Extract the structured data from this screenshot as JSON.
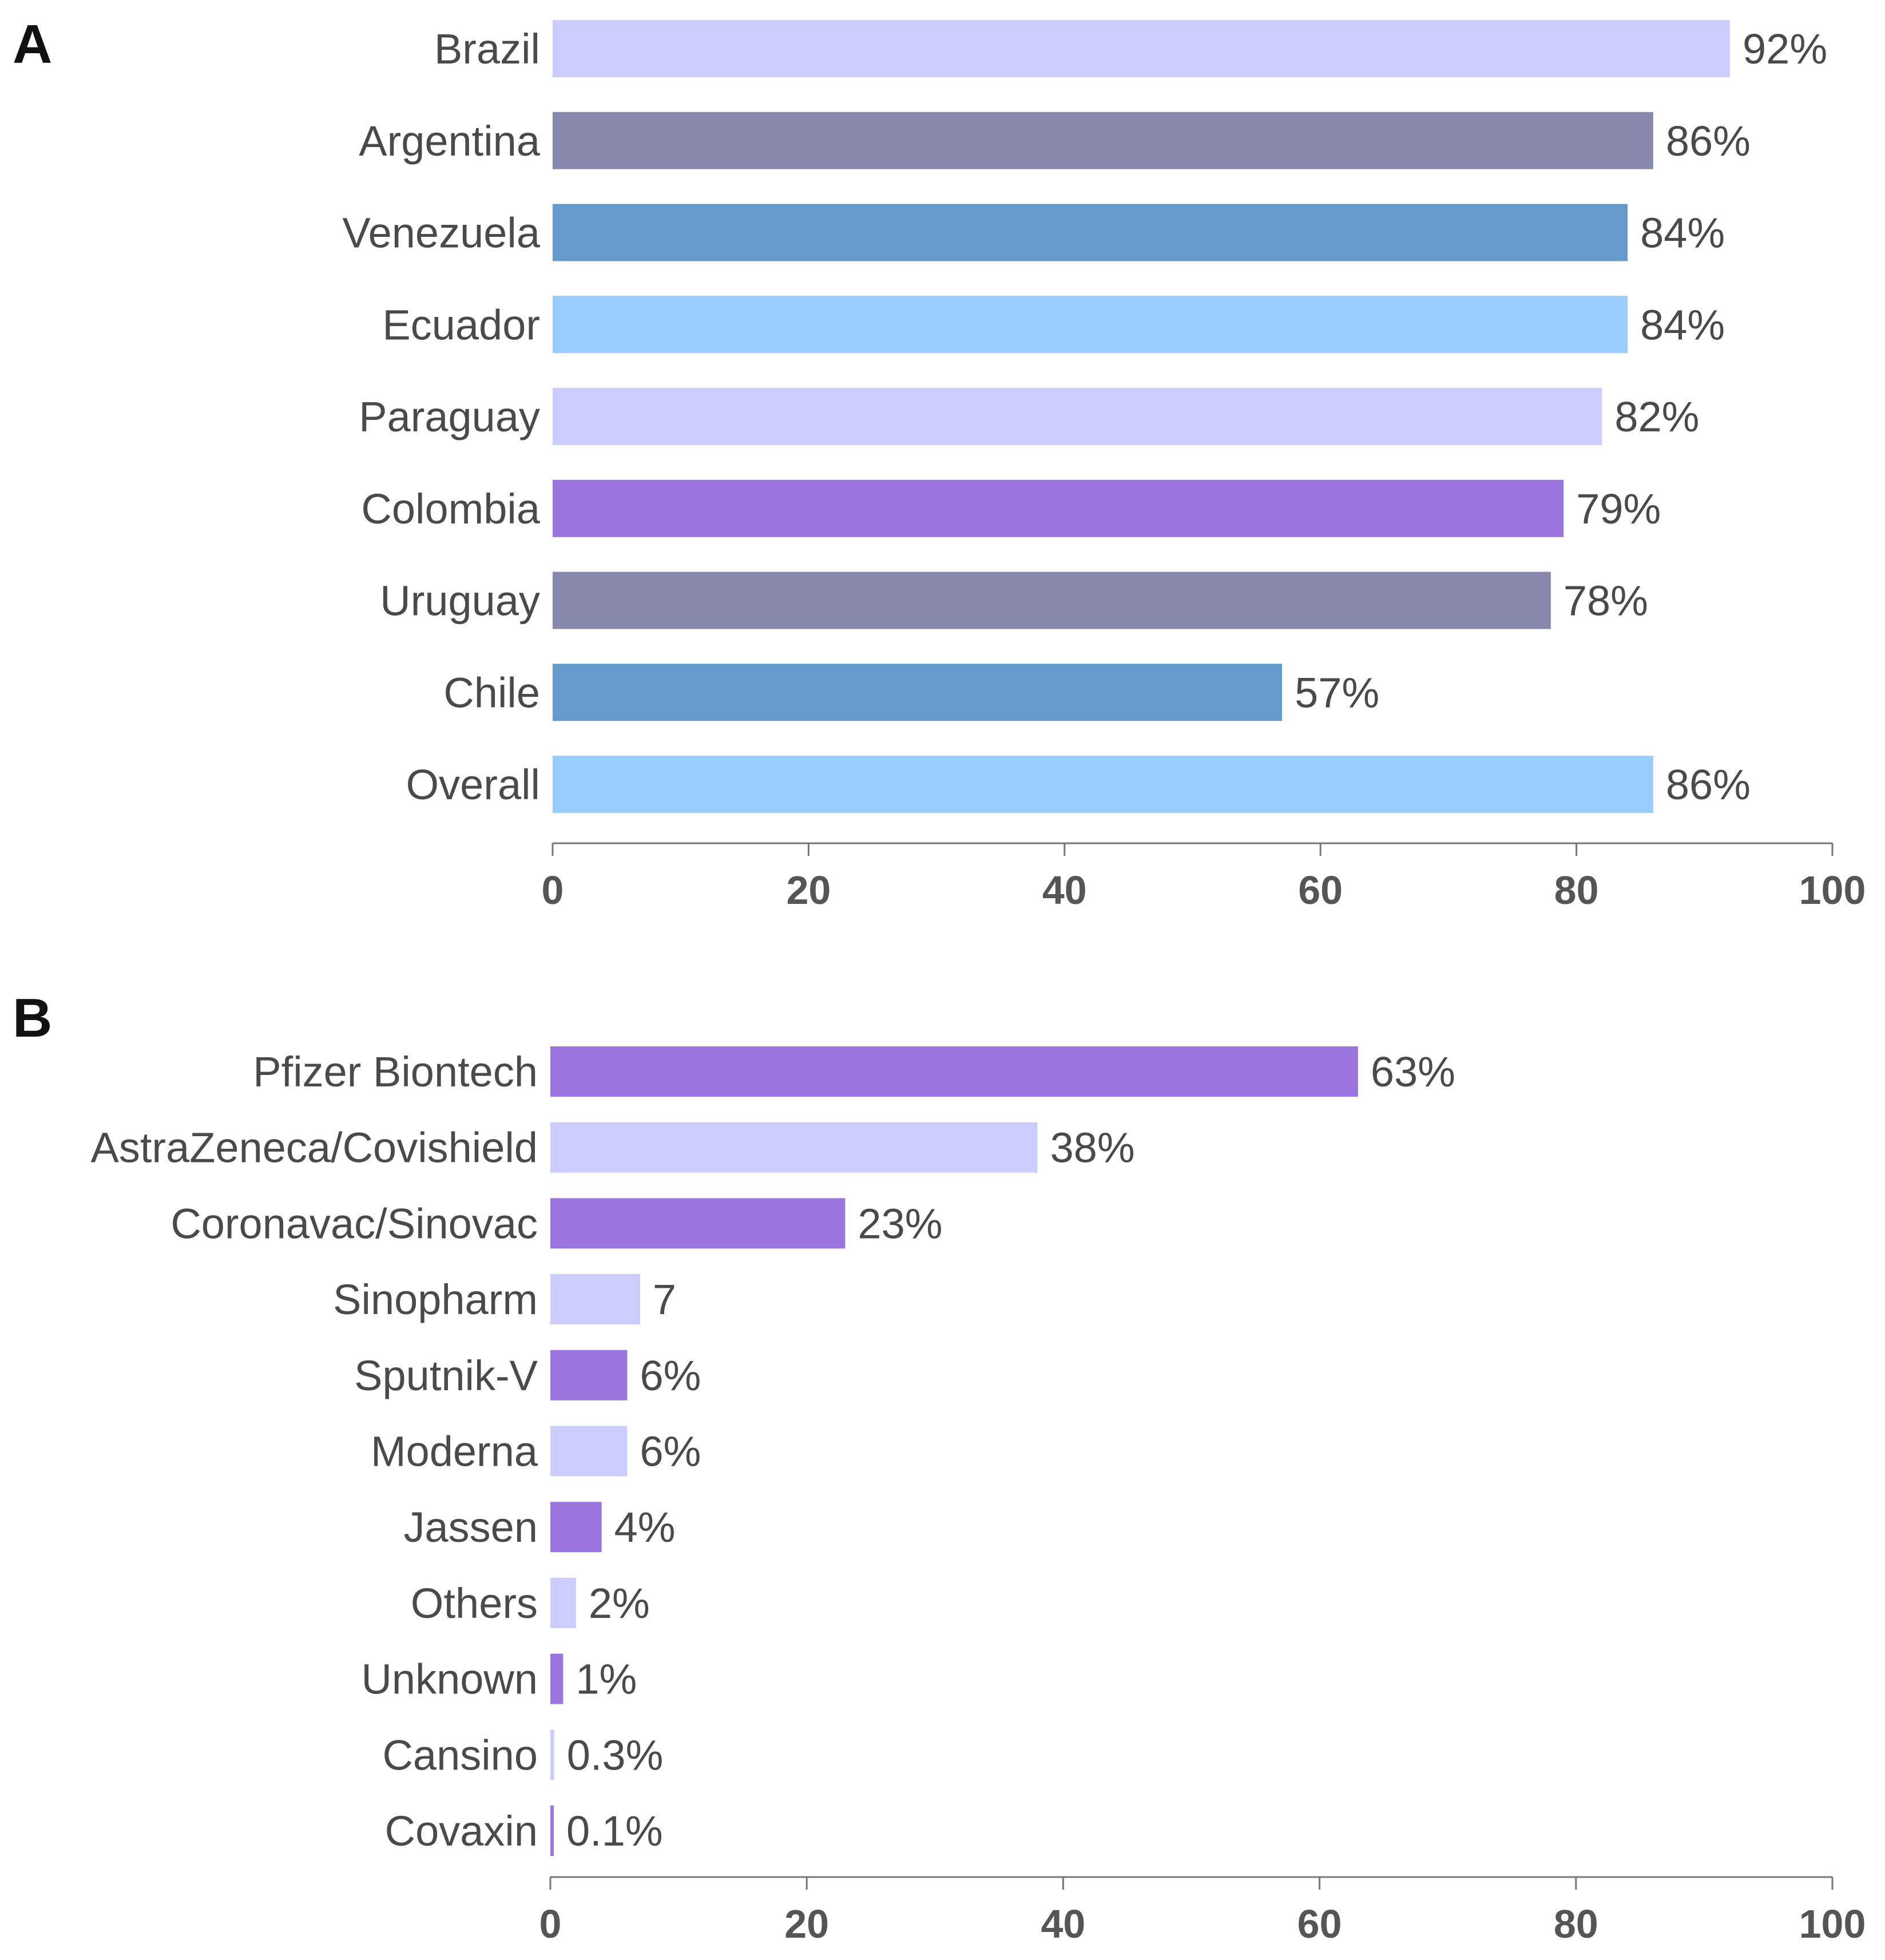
{
  "chart_data": [
    {
      "panel": "A",
      "type": "bar",
      "orientation": "horizontal",
      "categories": [
        "Brazil",
        "Argentina",
        "Venezuela",
        "Ecuador",
        "Paraguay",
        "Colombia",
        "Uruguay",
        "Chile",
        "Overall"
      ],
      "values": [
        92,
        86,
        84,
        84,
        82,
        79,
        78,
        57,
        86
      ],
      "value_labels": [
        "92%",
        "86%",
        "84%",
        "84%",
        "82%",
        "79%",
        "78%",
        "57%",
        "86%"
      ],
      "colors": [
        "#ccccff",
        "#8888ad",
        "#6699cc",
        "#99ccff",
        "#ccccff",
        "#9975dd",
        "#8888ad",
        "#6699cc",
        "#99ccff"
      ],
      "xlim": [
        0,
        100
      ],
      "ticks": [
        0,
        20,
        40,
        60,
        80,
        100
      ],
      "tick_labels": [
        "0",
        "20",
        "40",
        "60",
        "80",
        "100"
      ],
      "title": "",
      "xlabel": "",
      "ylabel": ""
    },
    {
      "panel": "B",
      "type": "bar",
      "orientation": "horizontal",
      "categories": [
        "Pfizer Biontech",
        "AstraZeneca/Covishield",
        "Coronavac/Sinovac",
        "Sinopharm",
        "Sputnik-V",
        "Moderna",
        "Jassen",
        "Others",
        "Unknown",
        "Cansino",
        "Covaxin"
      ],
      "values": [
        63,
        38,
        23,
        7,
        6,
        6,
        4,
        2,
        1,
        0.3,
        0.1
      ],
      "value_labels": [
        "63%",
        "38%",
        "23%",
        "7",
        "6%",
        "6%",
        "4%",
        "2%",
        "1%",
        "0.3%",
        "0.1%"
      ],
      "colors": [
        "#9975dd",
        "#ccccff",
        "#9975dd",
        "#ccccff",
        "#9975dd",
        "#ccccff",
        "#9975dd",
        "#ccccff",
        "#9975dd",
        "#ccccff",
        "#9975dd"
      ],
      "xlim": [
        0,
        100
      ],
      "ticks": [
        0,
        20,
        40,
        60,
        80,
        100
      ],
      "tick_labels": [
        "0",
        "20",
        "40",
        "60",
        "80",
        "100"
      ],
      "title": "",
      "xlabel": "",
      "ylabel": ""
    }
  ]
}
